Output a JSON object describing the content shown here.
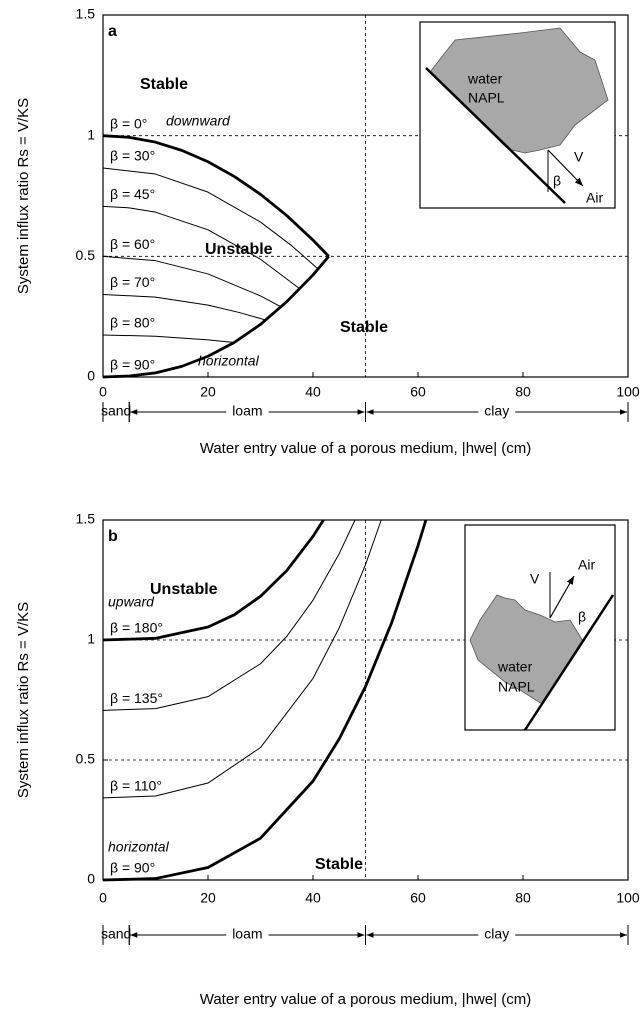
{
  "chart_data": [
    {
      "type": "line",
      "panel_label": "a",
      "xlabel": "Water entry value of a porous medium, |hwe| (cm)",
      "ylabel": "System influx ratio Rs = V/KS",
      "xlim": [
        0,
        100
      ],
      "ylim": [
        0,
        1.5
      ],
      "xticks": [
        0,
        20,
        40,
        60,
        80,
        100
      ],
      "yticks": [
        0,
        0.5,
        1,
        1.5
      ],
      "grid": true,
      "vline": 50,
      "texture_classes": [
        {
          "label": "sand",
          "range": [
            0,
            5
          ]
        },
        {
          "label": "loam",
          "range": [
            5,
            50
          ]
        },
        {
          "label": "clay",
          "range": [
            50,
            100
          ]
        }
      ],
      "annotations": [
        "Stable",
        "Unstable",
        "Stable",
        "downward",
        "horizontal"
      ],
      "inset": [
        "water",
        "NAPL",
        "V",
        "β",
        "Air"
      ],
      "series": [
        {
          "name": "β = 0°",
          "color": "#000000",
          "linewidth": 2.8,
          "x": [
            0,
            5,
            10,
            15,
            20,
            25,
            30,
            35,
            40,
            43
          ],
          "values": [
            1,
            0.993,
            0.973,
            0.939,
            0.892,
            0.831,
            0.757,
            0.669,
            0.567,
            0.5
          ]
        },
        {
          "name": "β = 30°",
          "color": "#000000",
          "linewidth": 1,
          "x": [
            0,
            10,
            20,
            30,
            36,
            41
          ],
          "values": [
            0.866,
            0.841,
            0.766,
            0.642,
            0.543,
            0.447
          ]
        },
        {
          "name": "β = 45°",
          "color": "#000000",
          "linewidth": 1,
          "x": [
            0,
            5,
            10,
            20,
            30,
            37.5
          ],
          "values": [
            0.707,
            0.701,
            0.683,
            0.61,
            0.488,
            0.365
          ]
        },
        {
          "name": "β = 60°",
          "color": "#000000",
          "linewidth": 1,
          "x": [
            0,
            10,
            20,
            30,
            34
          ],
          "values": [
            0.5,
            0.482,
            0.427,
            0.336,
            0.29
          ]
        },
        {
          "name": "β = 70°",
          "color": "#000000",
          "linewidth": 1,
          "x": [
            0,
            10,
            20,
            26,
            31
          ],
          "values": [
            0.342,
            0.331,
            0.298,
            0.267,
            0.236
          ]
        },
        {
          "name": "β = 80°",
          "color": "#000000",
          "linewidth": 1,
          "x": [
            0,
            10,
            20,
            25
          ],
          "values": [
            0.174,
            0.169,
            0.154,
            0.143
          ]
        },
        {
          "name": "β = 90°",
          "color": "#000000",
          "linewidth": 2.8,
          "x": [
            0,
            5,
            10,
            15,
            20,
            25,
            30,
            35,
            40,
            43
          ],
          "values": [
            0,
            0.004,
            0.017,
            0.044,
            0.086,
            0.143,
            0.218,
            0.312,
            0.423,
            0.5
          ]
        }
      ]
    },
    {
      "type": "line",
      "panel_label": "b",
      "xlabel": "Water entry value of a porous medium, |hwe| (cm)",
      "ylabel": "System influx ratio Rs = V/KS",
      "xlim": [
        0,
        100
      ],
      "ylim": [
        0,
        1.5
      ],
      "xticks": [
        0,
        20,
        40,
        60,
        80,
        100
      ],
      "yticks": [
        0,
        0.5,
        1,
        1.5
      ],
      "grid": true,
      "vline": 50,
      "texture_classes": [
        {
          "label": "sand",
          "range": [
            0,
            5
          ]
        },
        {
          "label": "loam",
          "range": [
            5,
            50
          ]
        },
        {
          "label": "clay",
          "range": [
            50,
            100
          ]
        }
      ],
      "annotations": [
        "Unstable",
        "Stable",
        "upward",
        "horizontal"
      ],
      "inset": [
        "water",
        "NAPL",
        "V",
        "β",
        "Air"
      ],
      "series": [
        {
          "name": "β = 180°",
          "color": "#000000",
          "linewidth": 2.8,
          "x": [
            0,
            10,
            20,
            25,
            30,
            35,
            40,
            42
          ],
          "values": [
            1,
            1.007,
            1.054,
            1.105,
            1.182,
            1.289,
            1.432,
            1.5
          ]
        },
        {
          "name": "β = 135°",
          "color": "#000000",
          "linewidth": 1,
          "x": [
            0,
            10,
            20,
            30,
            35,
            40,
            45,
            48
          ],
          "values": [
            0.707,
            0.714,
            0.764,
            0.901,
            1.015,
            1.166,
            1.36,
            1.5
          ]
        },
        {
          "name": "β = 110°",
          "color": "#000000",
          "linewidth": 1,
          "x": [
            0,
            10,
            20,
            30,
            40,
            45,
            50,
            53
          ],
          "values": [
            0.342,
            0.35,
            0.404,
            0.552,
            0.84,
            1.051,
            1.314,
            1.5
          ]
        },
        {
          "name": "β = 90°",
          "color": "#000000",
          "linewidth": 2.8,
          "x": [
            0,
            10,
            20,
            30,
            40,
            45,
            50,
            55,
            60,
            61.5
          ],
          "values": [
            0,
            0.006,
            0.052,
            0.174,
            0.412,
            0.588,
            0.806,
            1.073,
            1.393,
            1.5
          ]
        }
      ]
    }
  ]
}
